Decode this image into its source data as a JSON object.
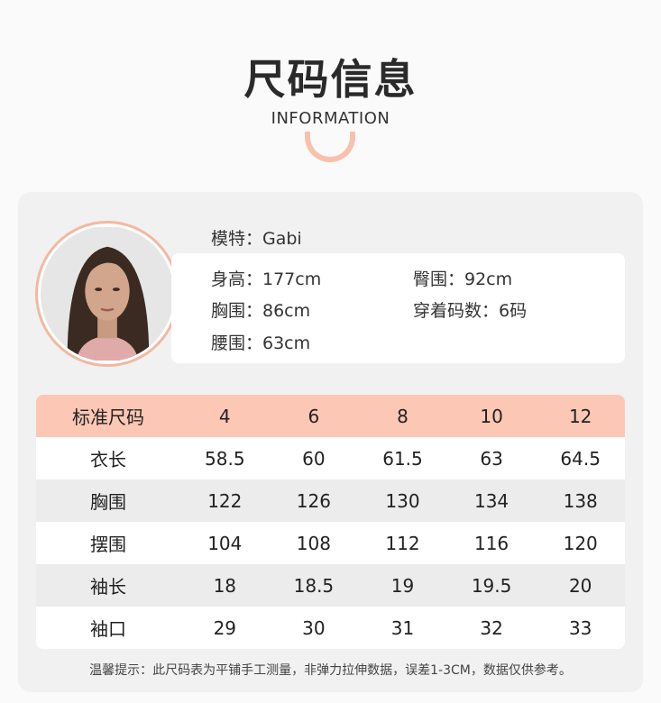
{
  "header": {
    "title": "尺码信息",
    "subtitle": "INFORMATION"
  },
  "model": {
    "name_label": "模特：Gabi",
    "stats": [
      "身高：177cm",
      "臀围：92cm",
      "胸围：86cm",
      "穿着码数：6码",
      "腰围：63cm"
    ]
  },
  "table": {
    "header": [
      "标准尺码",
      "4",
      "6",
      "8",
      "10",
      "12"
    ],
    "rows": [
      [
        "衣长",
        "58.5",
        "60",
        "61.5",
        "63",
        "64.5"
      ],
      [
        "胸围",
        "122",
        "126",
        "130",
        "134",
        "138"
      ],
      [
        "摆围",
        "104",
        "108",
        "112",
        "116",
        "120"
      ],
      [
        "袖长",
        "18",
        "18.5",
        "19",
        "19.5",
        "20"
      ],
      [
        "袖口",
        "29",
        "30",
        "31",
        "32",
        "33"
      ]
    ]
  },
  "note": "温馨提示：此尺码表为平铺手工测量，非弹力拉伸数据，误差1-3CM，数据仅供参考。",
  "colors": {
    "accent": "#fdc7b5",
    "ring": "#f3b8a3"
  }
}
